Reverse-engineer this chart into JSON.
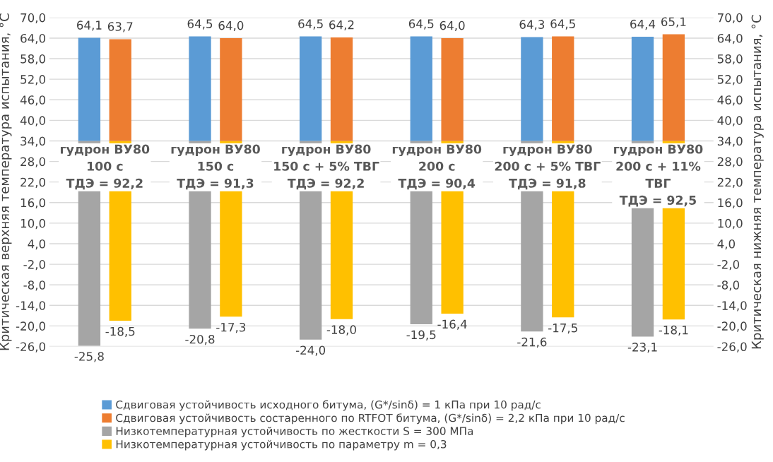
{
  "chart_data": {
    "type": "bar",
    "ylabel": "Критическая верхняя температура испытания, °C",
    "y2label": "Критическая нижняя температура испытания, °C",
    "categories": [
      "гудрон ВУ80\n100 с\nТДЭ = 92,2",
      "гудрон ВУ80\n150 с\nТДЭ = 91,3",
      "гудрон ВУ80\n150 с + 5% ТВГ\nТДЭ = 92,2",
      "гудрон ВУ80\n200 с\nТДЭ = 90,4",
      "гудрон ВУ80\n200 с + 5% ТВГ\nТДЭ = 91,8",
      "гудрон ВУ80\n200 с + 11%\nТВГ\nТДЭ = 92,5"
    ],
    "series": [
      {
        "name": "Сдвиговая устойчивость исходного битума, (G*/sinδ) = 1 кПа при 10 рад/с",
        "color": "#5b9bd5",
        "base": [
          34,
          34,
          34,
          34,
          34,
          34
        ],
        "values": [
          30.1,
          30.5,
          30.5,
          30.5,
          30.3,
          30.4
        ],
        "value_labels": [
          "64,1",
          "64,5",
          "64,5",
          "64,5",
          "64,3",
          "64,4"
        ]
      },
      {
        "name": "Сдвиговая устойчивость состаренного по RTFOT битума, (G*/sinδ) = 2,2 кПа при 10 рад/с",
        "color": "#ed7d31",
        "base": [
          34,
          34,
          34,
          34,
          34,
          34
        ],
        "values": [
          29.7,
          30.0,
          30.2,
          30.0,
          30.5,
          31.1
        ],
        "value_labels": [
          "63,7",
          "64,0",
          "64,2",
          "64,0",
          "64,5",
          "65,1"
        ]
      },
      {
        "name": "Низкотемпературная устойчивость по жесткости S = 300 МПа",
        "color": "#a5a5a5",
        "axis": "y2",
        "base": [
          34,
          34,
          34,
          34,
          34,
          34
        ],
        "values": [
          -59.8,
          -54.8,
          -58.0,
          -53.5,
          -55.6,
          -57.1
        ],
        "value_labels": [
          "-25,8",
          "-20,8",
          "-24,0",
          "-19,5",
          "-21,6",
          "-23,1"
        ]
      },
      {
        "name": "Низкотемпературная устойчивость по параметру m = 0,3",
        "color": "#ffc000",
        "axis": "y2",
        "base": [
          34,
          34,
          34,
          34,
          34,
          34
        ],
        "values": [
          -52.5,
          -51.3,
          -52.0,
          -50.4,
          -51.5,
          -52.1
        ],
        "value_labels": [
          "-18,5",
          "-17,3",
          "-18,0",
          "-16,4",
          "-17,5",
          "-18,1"
        ]
      }
    ],
    "ylim": [
      -26,
      70
    ],
    "yticks": [
      {
        "value": -26,
        "label": "-26,0"
      },
      {
        "value": -20,
        "label": "-20,0"
      },
      {
        "value": -14,
        "label": "-14,0"
      },
      {
        "value": -8,
        "label": "-8,0"
      },
      {
        "value": -2,
        "label": "-2,0"
      },
      {
        "value": 4,
        "label": "4,0"
      },
      {
        "value": 10,
        "label": "10,0"
      },
      {
        "value": 16,
        "label": "16,0"
      },
      {
        "value": 22,
        "label": "22,0"
      },
      {
        "value": 28,
        "label": "28,0"
      },
      {
        "value": 34,
        "label": "34,0"
      },
      {
        "value": 40,
        "label": "40,0"
      },
      {
        "value": 46,
        "label": "46,0"
      },
      {
        "value": 52,
        "label": "52,0"
      },
      {
        "value": 58,
        "label": "58,0"
      },
      {
        "value": 64,
        "label": "64,0"
      },
      {
        "value": 70,
        "label": "70,0"
      }
    ],
    "y2lim": [
      -26,
      70
    ],
    "y2ticks": [
      {
        "value": -26,
        "label": "-26,0"
      },
      {
        "value": -20,
        "label": "-20,0"
      },
      {
        "value": -14,
        "label": "-14,0"
      },
      {
        "value": -8,
        "label": "-8,0"
      },
      {
        "value": -2,
        "label": "-2,0"
      },
      {
        "value": 4,
        "label": "4,0"
      },
      {
        "value": 10,
        "label": "10,0"
      },
      {
        "value": 16,
        "label": "16,0"
      },
      {
        "value": 22,
        "label": "22,0"
      },
      {
        "value": 28,
        "label": "28,0"
      },
      {
        "value": 34,
        "label": "34,0"
      },
      {
        "value": 40,
        "label": "40,0"
      },
      {
        "value": 46,
        "label": "46,0"
      },
      {
        "value": 52,
        "label": "52,0"
      },
      {
        "value": 58,
        "label": "58,0"
      },
      {
        "value": 64,
        "label": "64,0"
      },
      {
        "value": 70,
        "label": "70,0"
      }
    ],
    "grid": "y",
    "legend": "bottom"
  }
}
